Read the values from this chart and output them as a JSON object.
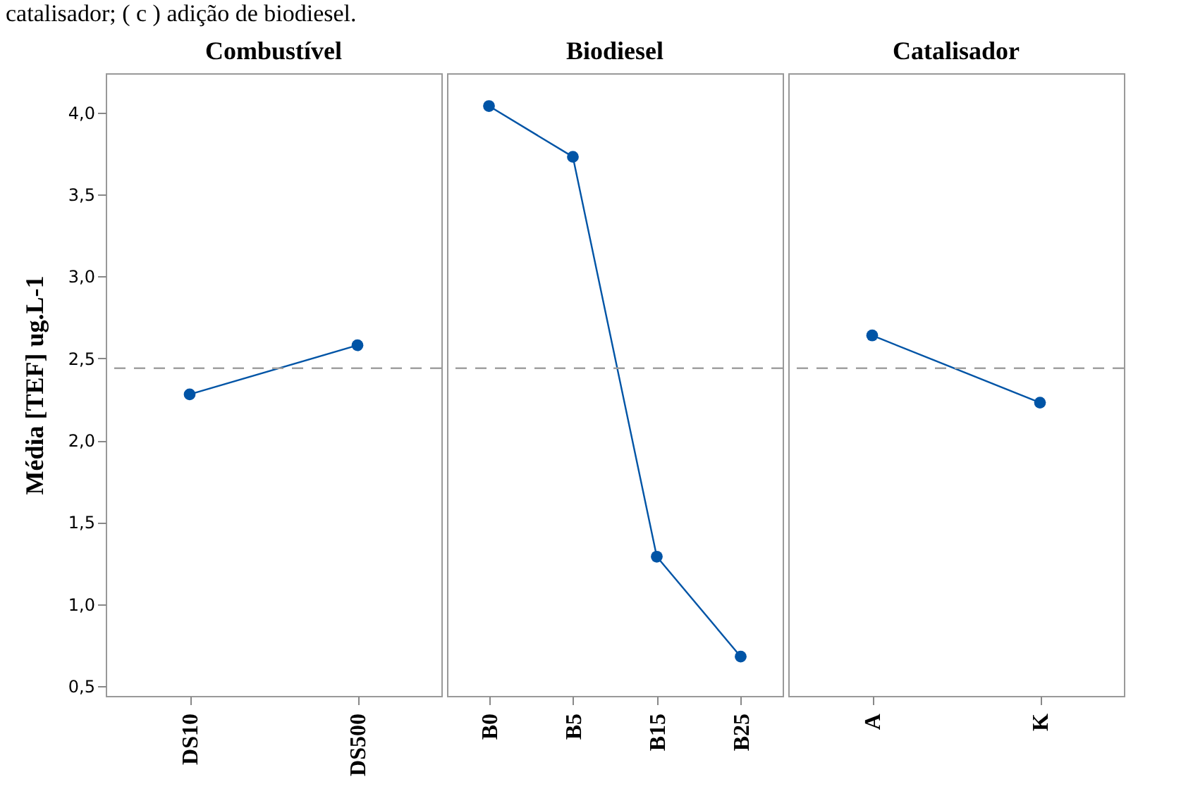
{
  "chart_data": [
    {
      "type": "line",
      "title": "Combustível",
      "ylabel": "Média  [TEF] ug.L-1",
      "annotations": [
        "catalisador; ( c ) adição de biodiesel."
      ],
      "categories": [
        "DS10",
        "DS500"
      ],
      "values": [
        2.28,
        2.58
      ],
      "color": "#0054a6",
      "marker": "circle",
      "ylim": [
        0.44,
        4.24
      ],
      "yticks": [
        {
          "value": 0.5,
          "label": "0,5"
        },
        {
          "value": 1,
          "label": "1,0"
        },
        {
          "value": 1.5,
          "label": "1,5"
        },
        {
          "value": 2,
          "label": "2,0"
        },
        {
          "value": 2.5,
          "label": "2,5"
        },
        {
          "value": 3,
          "label": "3,0"
        },
        {
          "value": 3.5,
          "label": "3,5"
        },
        {
          "value": 4,
          "label": "4,0"
        }
      ],
      "ref_lines": [
        {
          "axis": "y",
          "value": 2.44,
          "color": "#a0a0a0",
          "line_style": "dashed"
        }
      ]
    },
    {
      "type": "line",
      "title": "Biodiesel",
      "categories": [
        "B0",
        "B5",
        "B15",
        "B25"
      ],
      "values": [
        4.04,
        3.73,
        1.29,
        0.68
      ],
      "color": "#0054a6",
      "marker": "circle",
      "ylim": [
        0.44,
        4.24
      ],
      "tick_labels": "x",
      "ref_lines": [
        {
          "axis": "y",
          "value": 2.44,
          "color": "#a0a0a0",
          "line_style": "dashed"
        }
      ]
    },
    {
      "type": "line",
      "title": "Catalisador",
      "categories": [
        "A",
        "K"
      ],
      "values": [
        2.64,
        2.23
      ],
      "color": "#0054a6",
      "marker": "circle",
      "ylim": [
        0.44,
        4.24
      ],
      "tick_labels": "x",
      "ref_lines": [
        {
          "axis": "y",
          "value": 2.44,
          "color": "#a0a0a0",
          "line_style": "dashed"
        }
      ]
    }
  ]
}
